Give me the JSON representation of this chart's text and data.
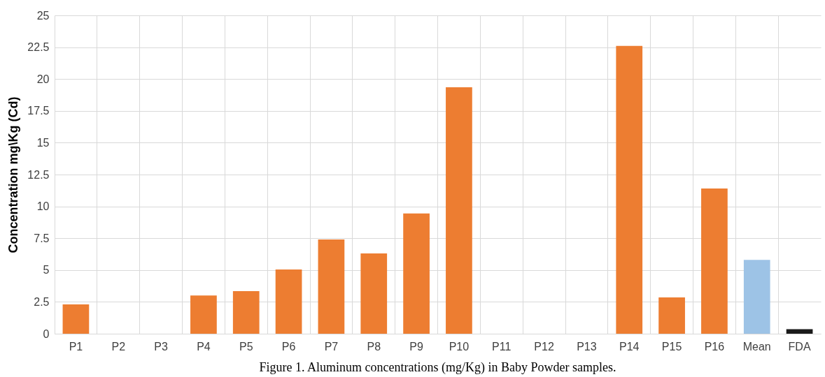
{
  "chart_data": {
    "type": "bar",
    "ylabel": "Concentration mg\\Kg (Cd)",
    "annotations": [
      "Figure 1. Aluminum concentrations (mg/Kg) in Baby Powder samples."
    ],
    "categories": [
      "P1",
      "P2",
      "P3",
      "P4",
      "P5",
      "P6",
      "P7",
      "P8",
      "P9",
      "P10",
      "P11",
      "P12",
      "P13",
      "P14",
      "P15",
      "P16",
      "Mean",
      "FDA"
    ],
    "values": [
      2.3,
      0,
      0,
      3,
      3.35,
      5.05,
      7.4,
      6.3,
      9.45,
      19.35,
      0,
      0,
      0,
      22.6,
      2.85,
      11.4,
      5.8,
      0.35
    ],
    "colors": [
      "#ed7d31",
      "#ed7d31",
      "#ed7d31",
      "#ed7d31",
      "#ed7d31",
      "#ed7d31",
      "#ed7d31",
      "#ed7d31",
      "#ed7d31",
      "#ed7d31",
      "#ed7d31",
      "#ed7d31",
      "#ed7d31",
      "#ed7d31",
      "#ed7d31",
      "#ed7d31",
      "#9dc3e6",
      "#1a1a1a"
    ],
    "ylim": [
      0,
      25
    ],
    "yticks": [
      0,
      2.5,
      5,
      7.5,
      10,
      12.5,
      15,
      17.5,
      20,
      22.5,
      25
    ],
    "grid": true
  }
}
